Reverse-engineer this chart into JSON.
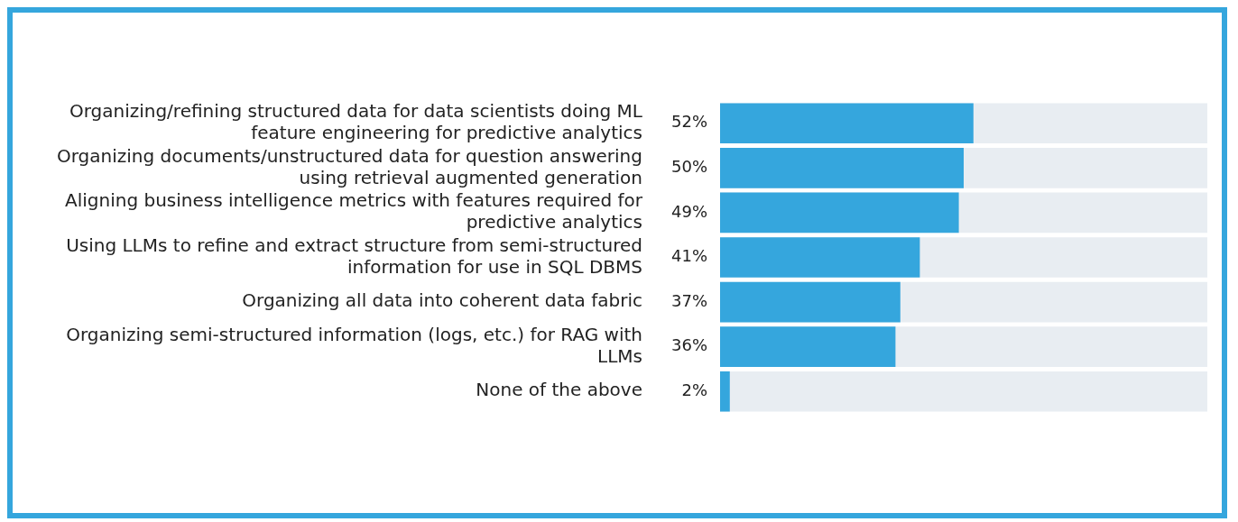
{
  "chart_data": {
    "type": "bar",
    "orientation": "horizontal",
    "categories": [
      "Organizing/refining structured data for data scientists doing ML feature engineering for predictive analytics",
      "Organizing documents/unstructured data for question answering using retrieval augmented generation",
      "Aligning business intelligence metrics with features required for predictive analytics",
      "Using LLMs to refine and extract structure from semi-structured information for use in SQL DBMS",
      "Organizing all data into coherent data fabric",
      "Organizing semi-structured information (logs, etc.) for RAG with LLMs",
      "None of the above"
    ],
    "values": [
      52,
      50,
      49,
      41,
      37,
      36,
      2
    ],
    "value_labels": [
      "52%",
      "50%",
      "49%",
      "41%",
      "37%",
      "36%",
      "2%"
    ],
    "color": "#35a6dd",
    "xlim": [
      0,
      100
    ],
    "tick_labels": "y",
    "grid": false,
    "legend": false
  }
}
